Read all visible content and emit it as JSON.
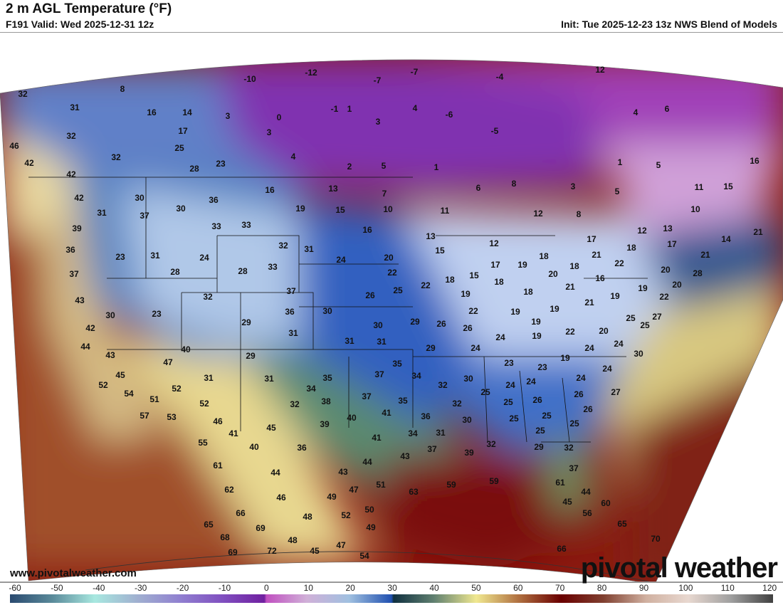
{
  "header": {
    "title": "2 m AGL Temperature (°F)",
    "valid": "F191 Valid: Wed 2025-12-31 12z",
    "init": "Init: Tue 2025-12-23 13z NWS Blend of Models"
  },
  "footer": {
    "site": "www.pivotalweather.com",
    "brand": "pivotal weather"
  },
  "colorbar": {
    "ticks": [
      "-60",
      "-50",
      "-40",
      "-30",
      "-20",
      "-10",
      "0",
      "10",
      "20",
      "30",
      "40",
      "50",
      "60",
      "70",
      "80",
      "90",
      "100",
      "110",
      "120"
    ],
    "stops": [
      [
        -60,
        "#2a4a70"
      ],
      [
        -50,
        "#5a8a9a"
      ],
      [
        -40,
        "#a8e8e0"
      ],
      [
        -30,
        "#a0b0d0"
      ],
      [
        -20,
        "#9080d0"
      ],
      [
        -10,
        "#8050c0"
      ],
      [
        0,
        "#7020a0"
      ],
      [
        0.5,
        "#c050c0"
      ],
      [
        10,
        "#d0b0d8"
      ],
      [
        20,
        "#a0c0e0"
      ],
      [
        30,
        "#2050b0"
      ],
      [
        30.5,
        "#103040"
      ],
      [
        40,
        "#608070"
      ],
      [
        50,
        "#f0e890"
      ],
      [
        60,
        "#b07040"
      ],
      [
        70,
        "#6a0000"
      ],
      [
        80,
        "#804030"
      ],
      [
        90,
        "#d0b0a0"
      ],
      [
        100,
        "#e8d8d0"
      ],
      [
        110,
        "#a0a0a0"
      ],
      [
        120,
        "#404040"
      ]
    ]
  },
  "temps": [
    "32",
    "8",
    "31",
    "16",
    "14",
    "3",
    "0",
    "-12",
    "-10",
    "-1",
    "1",
    "-7",
    "-7",
    "-4",
    "4",
    "-6",
    "3",
    "-5",
    "12",
    "4",
    "6",
    "17",
    "3",
    "32",
    "46",
    "25",
    "32",
    "4",
    "23",
    "28",
    "2",
    "5",
    "1",
    "1",
    "5",
    "16",
    "42",
    "42",
    "42",
    "16",
    "13",
    "7",
    "8",
    "6",
    "3",
    "5",
    "11",
    "15",
    "30",
    "36",
    "30",
    "37",
    "31",
    "19",
    "15",
    "10",
    "11",
    "12",
    "8",
    "10",
    "39",
    "33",
    "33",
    "16",
    "13",
    "12",
    "13",
    "14",
    "21",
    "32",
    "31",
    "12",
    "17",
    "18",
    "17",
    "21",
    "36",
    "23",
    "31",
    "24",
    "24",
    "20",
    "15",
    "21",
    "22",
    "33",
    "28",
    "28",
    "37",
    "17",
    "19",
    "18",
    "18",
    "20",
    "22",
    "18",
    "15",
    "18",
    "16",
    "20",
    "28",
    "43",
    "32",
    "37",
    "26",
    "25",
    "22",
    "19",
    "18",
    "21",
    "19",
    "19",
    "20",
    "22",
    "30",
    "23",
    "36",
    "30",
    "22",
    "19",
    "19",
    "21",
    "27",
    "42",
    "29",
    "31",
    "30",
    "29",
    "26",
    "26",
    "19",
    "25",
    "25",
    "20",
    "44",
    "31",
    "31",
    "24",
    "19",
    "22",
    "24",
    "40",
    "29",
    "24",
    "24",
    "30",
    "43",
    "47",
    "29",
    "35",
    "19",
    "23",
    "23",
    "45",
    "31",
    "31",
    "35",
    "37",
    "34",
    "24",
    "52",
    "52",
    "34",
    "32",
    "30",
    "24",
    "24",
    "24",
    "54",
    "51",
    "38",
    "37",
    "35",
    "25",
    "27",
    "52",
    "32",
    "41",
    "32",
    "25",
    "26",
    "26",
    "57",
    "53",
    "46",
    "40",
    "36",
    "39",
    "30",
    "25",
    "25",
    "26",
    "41",
    "45",
    "41",
    "34",
    "31",
    "25",
    "25",
    "55",
    "40",
    "36",
    "37",
    "32",
    "39",
    "29",
    "32",
    "43",
    "44",
    "61",
    "44",
    "43",
    "37",
    "62",
    "63",
    "59",
    "59",
    "47",
    "51",
    "61",
    "44",
    "46",
    "49",
    "66",
    "48",
    "52",
    "50",
    "45",
    "56",
    "60",
    "65",
    "69",
    "49",
    "65",
    "68",
    "48",
    "70",
    "69",
    "72",
    "45",
    "47",
    "54",
    "66"
  ]
}
